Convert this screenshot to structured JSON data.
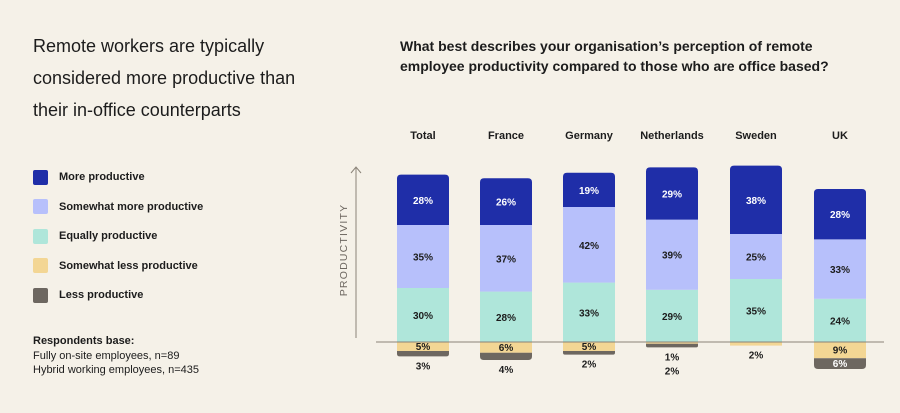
{
  "headline": "Remote workers are typically considered more productive than their in-office counterparts",
  "legend": [
    {
      "label": "More productive",
      "color": "#1f2ea8"
    },
    {
      "label": "Somewhat more productive",
      "color": "#b7c0fb"
    },
    {
      "label": "Equally productive",
      "color": "#afe6da"
    },
    {
      "label": "Somewhat less productive",
      "color": "#f3d694"
    },
    {
      "label": "Less productive",
      "color": "#6d6760"
    }
  ],
  "base": {
    "title": "Respondents base:",
    "line1": "Fully on-site employees, n=89",
    "line2": "Hybrid working employees, n=435"
  },
  "chart_data": {
    "type": "bar",
    "title": "What best describes your organisation’s perception of remote employee productivity compared to those who are office based?",
    "ylabel": "PRODUCTIVITY",
    "categories": [
      "Total",
      "France",
      "Germany",
      "Netherlands",
      "Sweden",
      "UK"
    ],
    "series": [
      {
        "name": "More productive",
        "values": [
          28,
          26,
          19,
          29,
          38,
          28
        ],
        "labels": [
          "28%",
          "26%",
          "19%",
          "29%",
          "38%",
          "28%"
        ],
        "color": "#1f2ea8",
        "text_color": "#ffffff"
      },
      {
        "name": "Somewhat more productive",
        "values": [
          35,
          37,
          42,
          39,
          25,
          33
        ],
        "labels": [
          "35%",
          "37%",
          "42%",
          "39%",
          "25%",
          "33%"
        ],
        "color": "#b7c0fb",
        "text_color": "#1c1c1c"
      },
      {
        "name": "Equally productive",
        "values": [
          30,
          28,
          33,
          29,
          35,
          24
        ],
        "labels": [
          "30%",
          "28%",
          "33%",
          "29%",
          "35%",
          "24%"
        ],
        "color": "#afe6da",
        "text_color": "#1c1c1c"
      },
      {
        "name": "Somewhat less productive",
        "values": [
          5,
          6,
          5,
          1,
          2,
          9
        ],
        "labels": [
          "5%",
          "6%",
          "5%",
          "1%",
          "2%",
          "9%"
        ],
        "color": "#f3d694",
        "text_color": "#1c1c1c"
      },
      {
        "name": "Less productive",
        "values": [
          3,
          4,
          2,
          2,
          0,
          6
        ],
        "labels": [
          "3%",
          "4%",
          "2%",
          "2%",
          "",
          "6%"
        ],
        "color": "#6d6760",
        "text_color": "#ffffff"
      }
    ]
  }
}
